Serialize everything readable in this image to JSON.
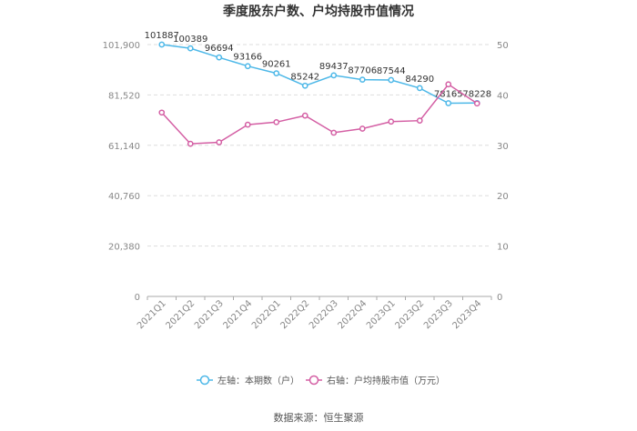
{
  "chart_data": {
    "type": "line",
    "title": "季度股东户数、户均持股市值情况",
    "categories": [
      "2021Q1",
      "2021Q2",
      "2021Q3",
      "2021Q4",
      "2022Q1",
      "2022Q2",
      "2022Q3",
      "2022Q4",
      "2023Q1",
      "2023Q2",
      "2023Q3",
      "2023Q4"
    ],
    "left_axis": {
      "ticks": [
        "0",
        "20,380",
        "40,760",
        "61,140",
        "81,520",
        "101,900"
      ],
      "ylim": [
        0,
        101900
      ]
    },
    "right_axis": {
      "ticks": [
        "0",
        "10",
        "20",
        "30",
        "40",
        "50"
      ],
      "ylim": [
        0,
        50
      ]
    },
    "series": [
      {
        "name": "左轴：本期数（户）",
        "axis": "left",
        "color": "#4db8e8",
        "values": [
          101887,
          100389,
          96694,
          93166,
          90261,
          85242,
          89437,
          87706,
          87544,
          84290,
          78165,
          78228
        ],
        "labels": [
          "101887",
          "100389",
          "96694",
          "93166",
          "90261",
          "85242",
          "89437",
          "87706",
          "87544",
          "84290",
          "78165",
          "78228"
        ]
      },
      {
        "name": "右轴：户均持股市值（万元）",
        "axis": "right",
        "color": "#d45fa4",
        "values": [
          36.5,
          30.3,
          30.6,
          34.1,
          34.6,
          35.9,
          32.5,
          33.3,
          34.7,
          34.9,
          42.1,
          38.3
        ]
      }
    ],
    "grid": "horizontal-dashed",
    "legend_position": "bottom"
  },
  "source": "数据来源：恒生聚源"
}
